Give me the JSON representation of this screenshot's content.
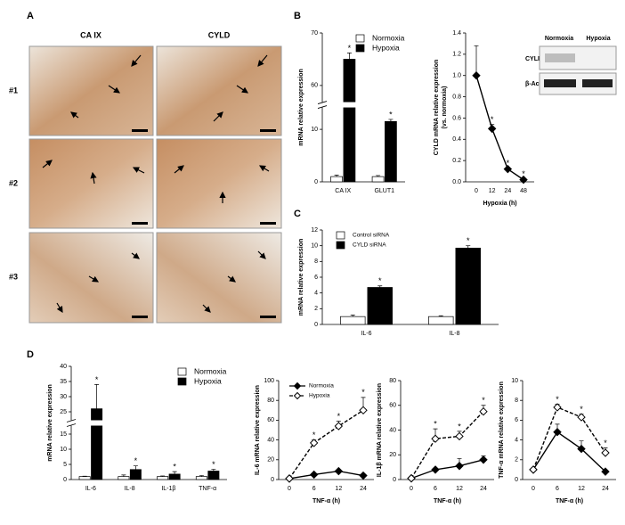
{
  "panel_a": {
    "label": "A",
    "columns": [
      "CA IX",
      "CYLD"
    ],
    "rows": [
      "#1",
      "#2",
      "#3"
    ]
  },
  "panel_labels": [
    "B",
    "C",
    "D"
  ],
  "blot": {
    "columns": [
      "Normoxia",
      "Hypoxia"
    ],
    "rows": [
      "CYLD",
      "β-Actin"
    ]
  },
  "chart_data": [
    {
      "type": "bar",
      "categories": [
        "CA IX",
        "GLUT1"
      ],
      "ylabel": "mRNA relative expression",
      "ylim": [
        0,
        70
      ],
      "yticks": [
        0,
        10,
        60,
        70
      ],
      "axis_break": [
        14,
        57
      ],
      "legend": "upper right",
      "series": [
        {
          "name": "Normoxia",
          "color": "#ffffff",
          "values": [
            1,
            1
          ],
          "errors": [
            0.3,
            0.2
          ]
        },
        {
          "name": "Hypoxia",
          "color": "#000000",
          "values": [
            65,
            11.5
          ],
          "errors": [
            1.2,
            0.4
          ],
          "significance": [
            "*",
            "*"
          ]
        }
      ]
    },
    {
      "type": "line",
      "categories": [
        "0",
        "12",
        "24",
        "48"
      ],
      "xlabel": "Hypoxia (h)",
      "ylabel": [
        "CYLD mRNA relative expression",
        "(vs. normoxia)"
      ],
      "ylim": [
        0,
        1.4
      ],
      "yticks": [
        {
          "value": 0,
          "label": "0.0"
        },
        {
          "value": 0.2,
          "label": "0.2"
        },
        {
          "value": 0.4,
          "label": "0.4"
        },
        {
          "value": 0.6,
          "label": "0.6"
        },
        {
          "value": 0.8,
          "label": "0.8"
        },
        {
          "value": 1,
          "label": "1.0"
        },
        {
          "value": 1.2,
          "label": "1.2"
        },
        {
          "value": 1.4,
          "label": "1.4"
        }
      ],
      "series": [
        {
          "color": "#000000",
          "fill": "#000000",
          "values": [
            1,
            0.5,
            0.12,
            0.02
          ],
          "errors": [
            0.28,
            0.04,
            0.01,
            0.01
          ],
          "significance": [
            null,
            "*",
            "*",
            "*"
          ]
        }
      ]
    },
    {
      "type": "bar",
      "categories": [
        "IL-6",
        "IL-8"
      ],
      "ylabel": "mRNA relative expression",
      "ylim": [
        0,
        12
      ],
      "yticks": [
        0,
        2,
        4,
        6,
        8,
        10,
        12
      ],
      "legend": "upper left",
      "series": [
        {
          "name": "Control siRNA",
          "color": "#ffffff",
          "values": [
            1,
            1
          ],
          "errors": [
            0.2,
            0.1
          ]
        },
        {
          "name": "CYLD siRNA",
          "color": "#000000",
          "values": [
            4.7,
            9.7
          ],
          "errors": [
            0.2,
            0.3
          ],
          "significance": [
            "*",
            "*"
          ]
        }
      ]
    },
    {
      "type": "bar",
      "categories": [
        "IL-6",
        "IL-8",
        "IL-1β",
        "TNF-α"
      ],
      "ylabel": "mRNA relative expression",
      "ylim": [
        0,
        40
      ],
      "yticks": [
        0,
        5,
        10,
        15,
        25,
        30,
        35,
        40
      ],
      "axis_break": [
        17.5,
        22.5
      ],
      "legend": "upper right",
      "series": [
        {
          "name": "Normoxia",
          "color": "#ffffff",
          "values": [
            1,
            1,
            1,
            1
          ],
          "errors": [
            0.1,
            0.5,
            0.2,
            0.3
          ]
        },
        {
          "name": "Hypoxia",
          "color": "#000000",
          "values": [
            26,
            3.3,
            1.8,
            2.8
          ],
          "errors": [
            8,
            1.2,
            0.8,
            0.6
          ],
          "significance": [
            "*",
            "*",
            "*",
            "*"
          ]
        }
      ]
    },
    {
      "type": "line",
      "categories": [
        "0",
        "6",
        "12",
        "24"
      ],
      "xlabel": "TNF-α (h)",
      "ylabel": "IL-6 mRNA relative expression",
      "ylim": [
        0,
        100
      ],
      "yticks": [
        0,
        20,
        40,
        60,
        80,
        100
      ],
      "legend": "upper left",
      "series": [
        {
          "name": "Normoxia",
          "color": "#000000",
          "fill": "#000000",
          "values": [
            1,
            5,
            8.5,
            4
          ],
          "errors": [
            0,
            0.5,
            1,
            1.5
          ]
        },
        {
          "name": "Hypoxia",
          "color": "#000000",
          "fill": "#ffffff",
          "dashed": true,
          "values": [
            1,
            37,
            54,
            70
          ],
          "errors": [
            0,
            3,
            5,
            13
          ],
          "significance": [
            null,
            "*",
            "*",
            "*"
          ]
        }
      ]
    },
    {
      "type": "line",
      "categories": [
        "0",
        "6",
        "12",
        "24"
      ],
      "xlabel": "TNF-α (h)",
      "ylabel": "IL-1β mRNA relative expression",
      "ylim": [
        0,
        80
      ],
      "yticks": [
        0,
        20,
        40,
        60,
        80
      ],
      "series": [
        {
          "color": "#000000",
          "fill": "#000000",
          "values": [
            1,
            8,
            11,
            16
          ],
          "errors": [
            0,
            1,
            6,
            3
          ]
        },
        {
          "color": "#000000",
          "fill": "#ffffff",
          "dashed": true,
          "values": [
            1,
            33,
            35,
            55
          ],
          "errors": [
            0,
            8,
            4,
            5
          ],
          "significance": [
            null,
            "*",
            "*",
            "*"
          ]
        }
      ]
    },
    {
      "type": "line",
      "categories": [
        "0",
        "6",
        "12",
        "24"
      ],
      "xlabel": "TNF-α (h)",
      "ylabel": "TNF-α mRNA relative expression",
      "ylim": [
        0,
        10
      ],
      "yticks": [
        0,
        2,
        4,
        6,
        8,
        10
      ],
      "series": [
        {
          "color": "#000000",
          "fill": "#000000",
          "values": [
            1,
            4.8,
            3.1,
            0.8
          ],
          "errors": [
            0.1,
            0.8,
            0.8,
            0.1
          ]
        },
        {
          "color": "#000000",
          "fill": "#ffffff",
          "dashed": true,
          "values": [
            1,
            7.3,
            6.3,
            2.7
          ],
          "errors": [
            0.1,
            0.3,
            0.3,
            0.5
          ],
          "significance": [
            null,
            "*",
            "*",
            "*"
          ]
        }
      ]
    }
  ]
}
